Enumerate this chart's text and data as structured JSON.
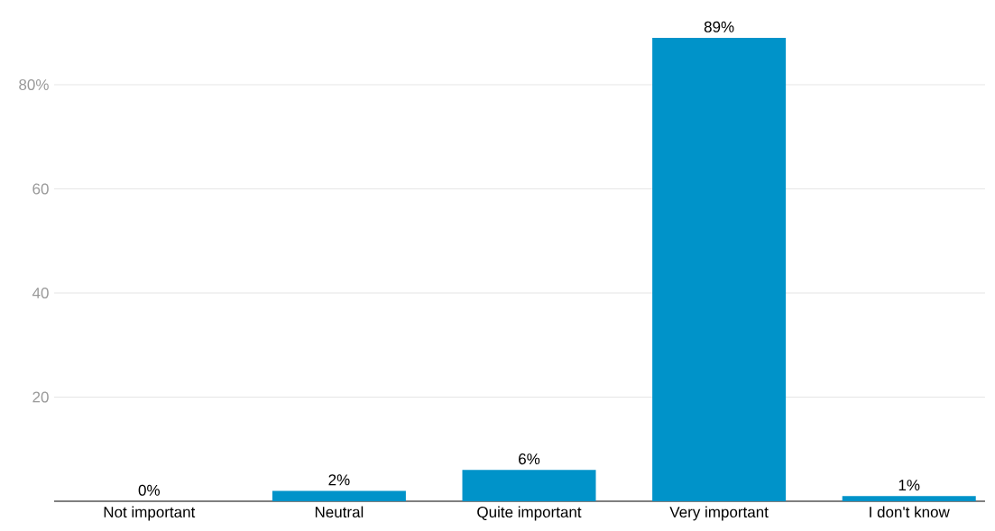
{
  "chart_data": {
    "type": "bar",
    "categories": [
      "Not important",
      "Neutral",
      "Quite important",
      "Very important",
      "I don't know"
    ],
    "values": [
      0,
      2,
      6,
      89,
      1
    ],
    "value_labels": [
      "0%",
      "2%",
      "6%",
      "89%",
      "1%"
    ],
    "color": "#0093c9",
    "ylim": [
      0,
      89
    ],
    "yticks": [
      20,
      40,
      60,
      {
        "value": 80,
        "label": "80%"
      }
    ],
    "grid": "y"
  }
}
